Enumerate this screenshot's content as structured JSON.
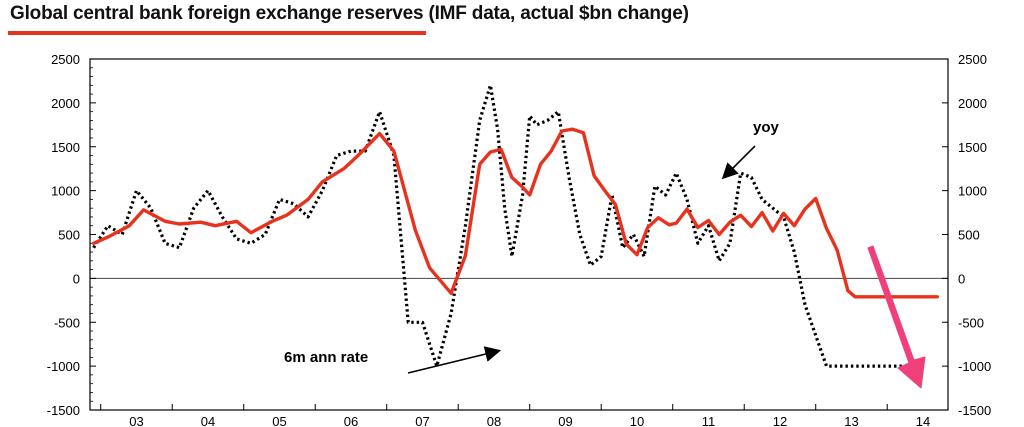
{
  "title": "Global central bank foreign exchange reserves (IMF data, actual $bn change)",
  "colors": {
    "accent": "#e8321e",
    "yoy": "#e8321e",
    "six_month": "#000000",
    "arrow_pink": "#f0407a"
  },
  "chart_data": {
    "type": "line",
    "title": "Global central bank foreign exchange reserves (IMF data, actual $bn change)",
    "xlabel": "",
    "ylabel": "",
    "x_tick_labels": [
      "03",
      "04",
      "05",
      "06",
      "07",
      "08",
      "09",
      "10",
      "11",
      "12",
      "13",
      "14"
    ],
    "xlim": [
      2002.85,
      2014.85
    ],
    "ylim": [
      -1500,
      2500
    ],
    "y_ticks": [
      2500,
      2000,
      1500,
      1000,
      500,
      0,
      -500,
      -1000,
      -1500
    ],
    "y_tick_labels": [
      "2500",
      "2000",
      "1500",
      "1000",
      "500",
      "0",
      "-500",
      "-1000",
      "-1500"
    ],
    "secondary_y_tick_labels": [
      "2500",
      "2000",
      "1500",
      "1000",
      "500",
      "0",
      "-500",
      "-1000",
      "-1500"
    ],
    "grid": false,
    "zero_line": true,
    "series": [
      {
        "name": "yoy",
        "style": "solid",
        "color": "#e8321e",
        "x": [
          2002.9,
          2003.1,
          2003.4,
          2003.6,
          2003.9,
          2004.1,
          2004.4,
          2004.6,
          2004.9,
          2005.1,
          2005.4,
          2005.6,
          2005.9,
          2006.1,
          2006.4,
          2006.6,
          2006.9,
          2007.1,
          2007.4,
          2007.6,
          2007.9,
          2008.1,
          2008.3,
          2008.45,
          2008.6,
          2008.75,
          2008.9,
          2009.0,
          2009.15,
          2009.3,
          2009.45,
          2009.6,
          2009.75,
          2009.9,
          2010.05,
          2010.2,
          2010.35,
          2010.5,
          2010.65,
          2010.8,
          2010.95,
          2011.05,
          2011.2,
          2011.35,
          2011.5,
          2011.65,
          2011.8,
          2011.95,
          2012.1,
          2012.25,
          2012.4,
          2012.55,
          2012.7,
          2012.85,
          2013.0,
          2013.15,
          2013.3,
          2013.45,
          2013.55,
          2013.7,
          2013.85,
          2014.0,
          2014.1,
          2014.25,
          2014.4,
          2014.55,
          2014.7
        ],
        "values": [
          400,
          470,
          600,
          780,
          650,
          620,
          640,
          600,
          650,
          520,
          650,
          720,
          900,
          1100,
          1250,
          1400,
          1650,
          1450,
          550,
          120,
          -170,
          260,
          1300,
          1440,
          1470,
          1150,
          1040,
          950,
          1300,
          1450,
          1680,
          1700,
          1660,
          1170,
          1000,
          840,
          390,
          270,
          580,
          690,
          610,
          630,
          790,
          580,
          660,
          500,
          640,
          720,
          590,
          750,
          540,
          740,
          600,
          790,
          910,
          570,
          320,
          -140,
          -210,
          -210,
          -210,
          -210,
          -210,
          -210,
          -210,
          -210,
          -210
        ]
      },
      {
        "name": "6m ann rate",
        "style": "dotted",
        "color": "#000000",
        "x": [
          2002.9,
          2003.1,
          2003.3,
          2003.5,
          2003.7,
          2003.9,
          2004.1,
          2004.3,
          2004.5,
          2004.7,
          2004.9,
          2005.1,
          2005.3,
          2005.5,
          2005.7,
          2005.9,
          2006.1,
          2006.3,
          2006.5,
          2006.7,
          2006.9,
          2007.1,
          2007.3,
          2007.5,
          2007.7,
          2007.9,
          2008.1,
          2008.3,
          2008.45,
          2008.55,
          2008.65,
          2008.75,
          2008.9,
          2009.0,
          2009.1,
          2009.25,
          2009.4,
          2009.55,
          2009.7,
          2009.85,
          2010.0,
          2010.15,
          2010.3,
          2010.45,
          2010.6,
          2010.75,
          2010.9,
          2011.05,
          2011.2,
          2011.35,
          2011.5,
          2011.65,
          2011.8,
          2011.95,
          2012.1,
          2012.25,
          2012.4,
          2012.55,
          2012.7,
          2012.85,
          2013.0,
          2013.15,
          2013.3,
          2013.45,
          2013.6,
          2013.75,
          2013.9,
          2014.05,
          2014.2,
          2014.35,
          2014.5
        ],
        "values": [
          350,
          600,
          500,
          1000,
          800,
          400,
          350,
          800,
          1000,
          700,
          450,
          400,
          500,
          900,
          850,
          700,
          1000,
          1400,
          1450,
          1450,
          1900,
          1400,
          -500,
          -500,
          -1000,
          -400,
          600,
          1800,
          2200,
          1700,
          800,
          250,
          950,
          1850,
          1750,
          1800,
          1900,
          1150,
          500,
          150,
          250,
          950,
          350,
          500,
          250,
          1050,
          950,
          1200,
          900,
          400,
          600,
          200,
          400,
          1200,
          1150,
          900,
          800,
          700,
          300,
          -300,
          -650,
          -1000,
          -1000,
          -1000,
          -1000,
          -1000,
          -1000,
          -1000,
          -1000,
          -1000,
          -1000
        ]
      }
    ],
    "annotations": [
      {
        "text": "yoy",
        "arrow": true
      },
      {
        "text": "6m ann rate",
        "arrow": true
      },
      {
        "text": "",
        "arrow": true,
        "color": "#f0407a",
        "direction": "down"
      }
    ]
  }
}
